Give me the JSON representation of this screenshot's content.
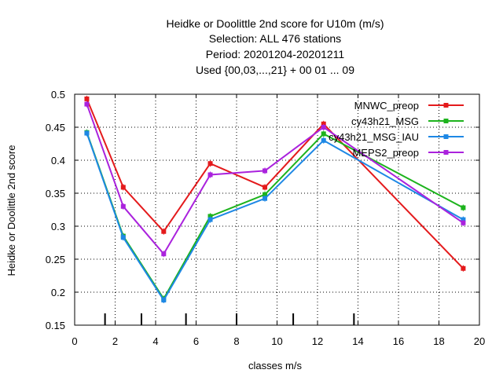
{
  "chart_data": {
    "type": "line",
    "title_lines": [
      "Heidke or Doolittle 2nd score  for U10m (m/s)",
      "Selection: ALL    476 stations",
      "Period: 20201204-20201211",
      "Used {00,03,...,21} + 00 01 ... 09"
    ],
    "xlabel": "classes m/s",
    "ylabel": "Heidke or Doolittle 2nd score",
    "xlim": [
      0,
      20
    ],
    "ylim": [
      0.15,
      0.5
    ],
    "xticks": [
      0,
      2,
      4,
      6,
      8,
      10,
      12,
      14,
      16,
      18,
      20
    ],
    "yticks": [
      0.15,
      0.2,
      0.25,
      0.3,
      0.35,
      0.4,
      0.45,
      0.5
    ],
    "xtick_labels": [
      "0",
      "2",
      "4",
      "6",
      "8",
      "10",
      "12",
      "14",
      "16",
      "18",
      "20"
    ],
    "ytick_labels": [
      "0.15",
      "0.2",
      "0.25",
      "0.3",
      "0.35",
      "0.4",
      "0.45",
      "0.5"
    ],
    "class_bounds": [
      1.5,
      3.3,
      5.5,
      8.0,
      10.8,
      13.8
    ],
    "grid": true,
    "legend_position": "top-right",
    "x": [
      0.6,
      2.4,
      4.4,
      6.7,
      9.4,
      12.3,
      19.2
    ],
    "series": [
      {
        "name": "MNWC_preop",
        "color": "#e41a1c",
        "values": [
          0.493,
          0.359,
          0.292,
          0.395,
          0.359,
          0.455,
          0.236
        ]
      },
      {
        "name": "cy43h21_MSG",
        "color": "#1db31d",
        "values": [
          0.442,
          0.285,
          0.19,
          0.315,
          0.348,
          0.44,
          0.328
        ]
      },
      {
        "name": "cy43h21_MSG_IAU",
        "color": "#1e88e5",
        "values": [
          0.441,
          0.283,
          0.188,
          0.31,
          0.342,
          0.43,
          0.31
        ]
      },
      {
        "name": "MEPS2_preop",
        "color": "#aa22dd",
        "values": [
          0.485,
          0.33,
          0.258,
          0.378,
          0.384,
          0.45,
          0.305
        ]
      }
    ]
  }
}
